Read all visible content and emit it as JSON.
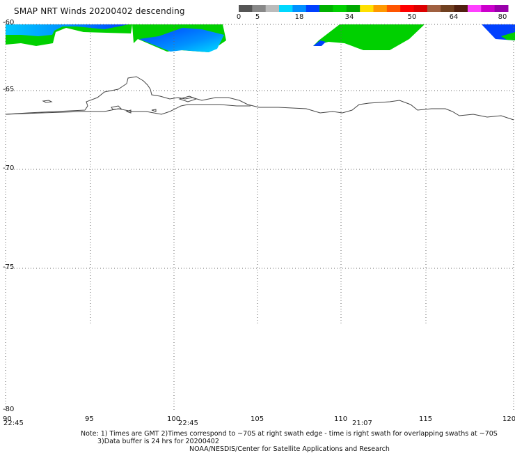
{
  "title": "SMAP NRT Winds  20200402 descending",
  "colorbar": {
    "labels": [
      "0",
      "5",
      "18",
      "34",
      "50",
      "64",
      "80"
    ],
    "segments": [
      "#555555",
      "#888888",
      "#bbbbbb",
      "#00d8ff",
      "#0090ff",
      "#0040ff",
      "#00b000",
      "#00d000",
      "#00a800",
      "#ffe000",
      "#ff9900",
      "#ff5500",
      "#ff0000",
      "#dd0000",
      "#a06040",
      "#704020",
      "#502010",
      "#ff40ff",
      "#cc00cc",
      "#9900aa"
    ]
  },
  "axes": {
    "lat_labels": [
      "-60",
      "-65",
      "-70",
      "-75",
      "-80"
    ],
    "lon_labels": [
      "90",
      "95",
      "100",
      "105",
      "110",
      "115",
      "120"
    ]
  },
  "times": [
    "22:45",
    "22:45",
    "21:07"
  ],
  "notes": {
    "line1": "Note: 1) Times are GMT 2)Times correspond to ~70S at right swath edge - time is right swath for overlapping swaths at ~70S",
    "line2": "3)Data buffer is 24 hrs for 20200402",
    "line3": "NOAA/NESDIS/Center for Satellite Applications and Research"
  },
  "colors": {
    "coast": "#444444",
    "grid": "#666666",
    "green": "#00d000",
    "blue": "#0040ff",
    "cyan": "#00c8ff"
  }
}
